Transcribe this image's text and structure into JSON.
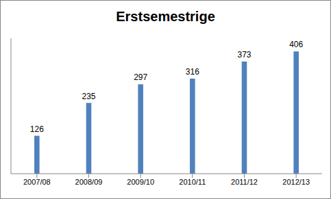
{
  "chart_data": {
    "type": "bar",
    "title": "Erstsemestrige",
    "categories": [
      "2007/08",
      "2008/09",
      "2009/10",
      "2010/11",
      "2011/12",
      "2012/13"
    ],
    "values": [
      126,
      235,
      297,
      316,
      373,
      406
    ],
    "color": "#4f81bd",
    "ylim": [
      0,
      450
    ],
    "yticks": [],
    "grid": false,
    "data_labels": true,
    "tick_labels": "x"
  }
}
